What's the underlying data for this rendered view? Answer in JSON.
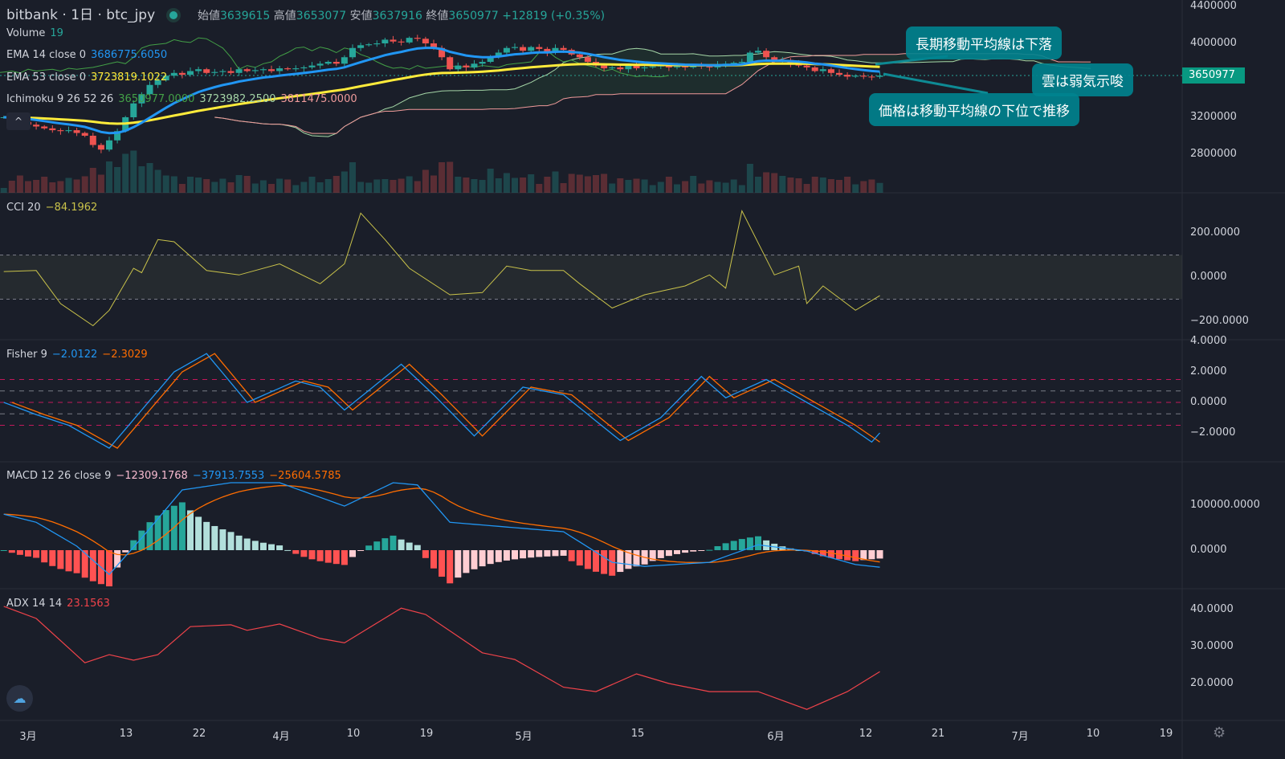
{
  "header": {
    "exchange": "bitbank",
    "interval": "1日",
    "symbol": "btc_jpy",
    "open_label": "始値",
    "open": "3639615",
    "high_label": "高値",
    "high": "3653077",
    "low_label": "安値",
    "low": "3637916",
    "close_label": "終値",
    "close": "3650977",
    "change": "+12819 (+0.35%)"
  },
  "legends": {
    "volume": {
      "label": "Volume",
      "value": "19"
    },
    "ema14": {
      "label": "EMA 14 close 0",
      "value": "3686775.6050"
    },
    "ema53": {
      "label": "EMA 53 close 0",
      "value": "3723819.1022"
    },
    "ichimoku": {
      "label": "Ichimoku 9 26 52 26",
      "v1": "3650977.0000",
      "v2": "3723982.2500",
      "v3": "3811475.0000"
    },
    "cci": {
      "label": "CCI 20",
      "value": "−84.1962"
    },
    "fisher": {
      "label": "Fisher 9",
      "v1": "−2.0122",
      "v2": "−2.3029"
    },
    "macd": {
      "label": "MACD 12 26 close 9",
      "v1": "−12309.1768",
      "v2": "−37913.7553",
      "v3": "−25604.5785"
    },
    "adx": {
      "label": "ADX 14 14",
      "value": "23.1563"
    }
  },
  "axes": {
    "price": [
      "4400000",
      "4000000",
      "3200000",
      "2800000"
    ],
    "last_price": "3650977",
    "cci": [
      "200.0000",
      "0.0000",
      "−200.0000"
    ],
    "fisher": [
      "4.0000",
      "2.0000",
      "0.0000",
      "−2.0000"
    ],
    "macd": [
      "100000.0000",
      "0.0000"
    ],
    "adx": [
      "40.0000",
      "30.0000",
      "20.0000"
    ],
    "time": [
      "3月",
      "13",
      "22",
      "4月",
      "10",
      "19",
      "5月",
      "15",
      "6月",
      "12",
      "21",
      "7月",
      "10",
      "19"
    ]
  },
  "callouts": [
    "長期移動平均線は下落",
    "雲は弱気示唆",
    "価格は移動平均線の下位で推移"
  ],
  "colors": {
    "up": "#26a69a",
    "down": "#ef5350",
    "ema14": "#2196f3",
    "ema53": "#ffeb3b",
    "cci": "#c9c24a",
    "fisher": "#2196f3",
    "trigger": "#ff6d00",
    "adx": "#f0434a"
  },
  "chart_data": [
    {
      "type": "candlestick",
      "name": "btc_jpy",
      "x_unit": "day index from Mar 1",
      "start_day": -3,
      "closes_thousand_jpy": [
        3200,
        3180,
        3150,
        3120,
        3100,
        3080,
        3060,
        3050,
        3060,
        3030,
        3000,
        2900,
        2850,
        2950,
        3050,
        3200,
        3350,
        3450,
        3550,
        3600,
        3650,
        3680,
        3660,
        3700,
        3720,
        3680,
        3690,
        3700,
        3680,
        3720,
        3700,
        3710,
        3720,
        3700,
        3730,
        3720,
        3730,
        3740,
        3760,
        3780,
        3800,
        3780,
        3850,
        3950,
        3980,
        3990,
        4000,
        4040,
        4020,
        4010,
        4060,
        4050,
        4000,
        3950,
        3850,
        3720,
        3760,
        3740,
        3780,
        3800,
        3860,
        3900,
        3950,
        3960,
        3920,
        3960,
        3940,
        3900,
        3950,
        3930,
        3880,
        3850,
        3800,
        3760,
        3730,
        3740,
        3720,
        3760,
        3730,
        3740,
        3750,
        3760,
        3740,
        3750,
        3740,
        3760,
        3750,
        3740,
        3770,
        3780,
        3790,
        3800,
        3900,
        3920,
        3850,
        3800,
        3820,
        3780,
        3760,
        3740,
        3700,
        3720,
        3680,
        3660,
        3640,
        3650,
        3640,
        3638,
        3651
      ]
    },
    {
      "type": "line",
      "name": "CCI 20",
      "ylim": [
        -200,
        200
      ],
      "points": [
        [
          -3,
          25
        ],
        [
          1,
          30
        ],
        [
          4,
          -120
        ],
        [
          8,
          -220
        ],
        [
          10,
          -150
        ],
        [
          13,
          40
        ],
        [
          14,
          20
        ],
        [
          16,
          170
        ],
        [
          18,
          160
        ],
        [
          22,
          30
        ],
        [
          26,
          10
        ],
        [
          31,
          60
        ],
        [
          36,
          -30
        ],
        [
          39,
          60
        ],
        [
          41,
          290
        ],
        [
          44,
          170
        ],
        [
          47,
          40
        ],
        [
          52,
          -80
        ],
        [
          56,
          -70
        ],
        [
          59,
          50
        ],
        [
          62,
          30
        ],
        [
          66,
          30
        ],
        [
          68,
          -30
        ],
        [
          72,
          -140
        ],
        [
          76,
          -80
        ],
        [
          81,
          -40
        ],
        [
          84,
          10
        ],
        [
          86,
          -50
        ],
        [
          88,
          300
        ],
        [
          92,
          10
        ],
        [
          95,
          50
        ],
        [
          96,
          -120
        ],
        [
          98,
          -40
        ],
        [
          102,
          -150
        ],
        [
          105,
          -84
        ]
      ]
    },
    {
      "type": "line",
      "name": "Fisher 9",
      "points": [
        [
          -3,
          0
        ],
        [
          1,
          -0.8
        ],
        [
          5,
          -1.5
        ],
        [
          10,
          -3
        ],
        [
          14,
          -0.5
        ],
        [
          18,
          2
        ],
        [
          22,
          3.2
        ],
        [
          27,
          0
        ],
        [
          33,
          1.4
        ],
        [
          36,
          1
        ],
        [
          39,
          -0.5
        ],
        [
          46,
          2.5
        ],
        [
          50,
          0.5
        ],
        [
          55,
          -2.2
        ],
        [
          61,
          1
        ],
        [
          66,
          0.5
        ],
        [
          73,
          -2.5
        ],
        [
          78,
          -1
        ],
        [
          83,
          1.7
        ],
        [
          86,
          0.3
        ],
        [
          91,
          1.5
        ],
        [
          96,
          0
        ],
        [
          101,
          -1.5
        ],
        [
          104,
          -2.6
        ],
        [
          105,
          -2
        ]
      ],
      "levels": [
        1.5,
        0.75,
        0,
        -0.75,
        -1.5
      ]
    },
    {
      "type": "line",
      "name": "MACD 12 26 close 9",
      "points": [
        [
          -3,
          80000
        ],
        [
          1,
          62000
        ],
        [
          6,
          9000
        ],
        [
          10,
          -54000
        ],
        [
          14,
          27000
        ],
        [
          19,
          134000
        ],
        [
          25,
          150000
        ],
        [
          31,
          150000
        ],
        [
          39,
          98000
        ],
        [
          45,
          150000
        ],
        [
          48,
          145000
        ],
        [
          52,
          62000
        ],
        [
          60,
          50000
        ],
        [
          66,
          41000
        ],
        [
          72,
          -27000
        ],
        [
          76,
          -36000
        ],
        [
          84,
          -27000
        ],
        [
          90,
          12000
        ],
        [
          96,
          -2000
        ],
        [
          102,
          -32000
        ],
        [
          105,
          -37900
        ]
      ]
    },
    {
      "type": "line",
      "name": "ADX 14 14",
      "points": [
        [
          -3,
          40.9
        ],
        [
          1,
          37.6
        ],
        [
          7,
          25.6
        ],
        [
          10,
          27.8
        ],
        [
          13,
          26.3
        ],
        [
          16,
          27.8
        ],
        [
          20,
          35.4
        ],
        [
          25,
          35.9
        ],
        [
          27,
          34.4
        ],
        [
          31,
          36.1
        ],
        [
          36,
          32.2
        ],
        [
          39,
          31
        ],
        [
          46,
          40.4
        ],
        [
          49,
          38.7
        ],
        [
          56,
          28.3
        ],
        [
          60,
          26.5
        ],
        [
          66,
          19
        ],
        [
          70,
          17.8
        ],
        [
          75,
          22.6
        ],
        [
          79,
          20
        ],
        [
          84,
          17.8
        ],
        [
          90,
          17.8
        ],
        [
          96,
          13
        ],
        [
          101,
          17.8
        ],
        [
          105,
          23.2
        ]
      ]
    }
  ]
}
